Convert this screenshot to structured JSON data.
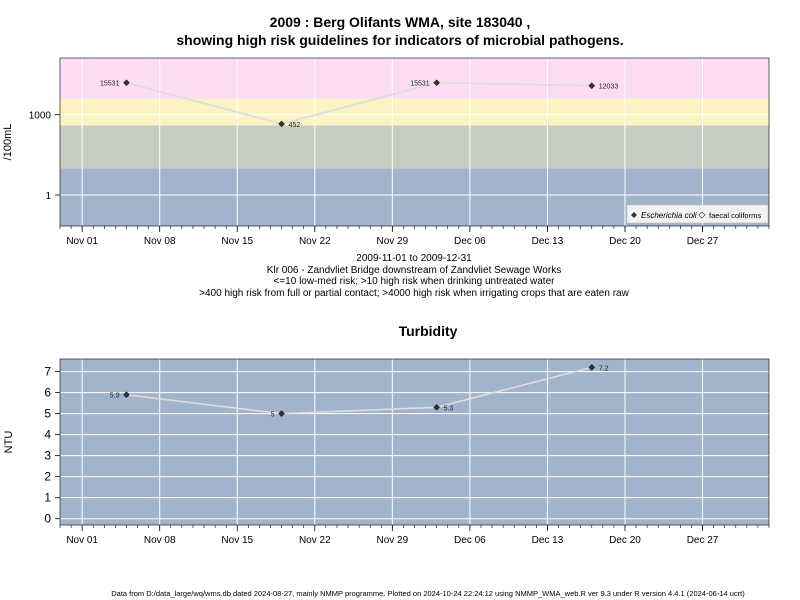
{
  "top": {
    "title_line1": "2009 : Berg Olifants WMA, site 183040 ,",
    "title_line2": "showing high risk guidelines for indicators of microbial pathogens.",
    "ylabel": "/100mL",
    "caption": [
      "2009-11-01 to 2009-12-31",
      "Klr 006 - Zandvliet Bridge downstream of Zandvliet Sewage Works",
      "<=10 low-med risk; >10 high risk when drinking untreated water",
      ">400 high risk from full or partial contact; >4000 high risk when irrigating crops that are eaten raw"
    ],
    "legend": {
      "ecoli": "Escherichia coli",
      "fc": "faecal coliforms"
    }
  },
  "bottom": {
    "title": "Turbidity",
    "ylabel": "NTU"
  },
  "footer": "Data from D:/data_large/wq/wms.db dated 2024-08-27, mainly NMMP programme. Plotted on 2024-10-24 22:24:12 using NMMP_WMA_web.R ver 9.3 under R version 4.4.1 (2024-06-14 ucrt)",
  "chart_data": [
    {
      "type": "line",
      "title": "2009 : Berg Olifants WMA, site 183040 , showing high risk guidelines for indicators of microbial pathogens.",
      "ylabel": "/100mL",
      "y_scale": "log",
      "y_ticks": [
        1,
        1000
      ],
      "ylim": [
        0.07,
        130000
      ],
      "xlim": [
        "2009-10-30",
        "2010-01-02"
      ],
      "x_tick_labels": [
        "Nov 01",
        "Nov 08",
        "Nov 15",
        "Nov 22",
        "Nov 29",
        "Dec 06",
        "Dec 13",
        "Dec 20",
        "Dec 27"
      ],
      "x_ticks": [
        "2009-11-01",
        "2009-11-08",
        "2009-11-15",
        "2009-11-22",
        "2009-11-29",
        "2009-12-06",
        "2009-12-13",
        "2009-12-20",
        "2009-12-27"
      ],
      "bands": [
        {
          "from": 0.07,
          "to": 10,
          "color": "#a2b4cc"
        },
        {
          "from": 10,
          "to": 400,
          "color": "#c5cdc2"
        },
        {
          "from": 400,
          "to": 4000,
          "color": "#fbf3c4"
        },
        {
          "from": 4000,
          "to": 130000,
          "color": "#fbdcf4"
        }
      ],
      "series": [
        {
          "name": "Escherichia coli",
          "marker": "filled-diamond",
          "x": [
            "2009-11-05",
            "2009-11-19",
            "2009-12-03",
            "2009-12-17"
          ],
          "y": [
            15531,
            452,
            15531,
            12033
          ],
          "labels": [
            "15531",
            "452",
            "15531",
            "12033"
          ]
        }
      ],
      "legend": [
        "Escherichia coli",
        "faecal coliforms"
      ],
      "legend_position": "bottom-right",
      "grid": true
    },
    {
      "type": "line",
      "title": "Turbidity",
      "ylabel": "NTU",
      "ylim": [
        -0.3,
        7.6
      ],
      "y_ticks": [
        0,
        1,
        2,
        3,
        4,
        5,
        6,
        7
      ],
      "xlim": [
        "2009-10-30",
        "2010-01-02"
      ],
      "x_tick_labels": [
        "Nov 01",
        "Nov 08",
        "Nov 15",
        "Nov 22",
        "Nov 29",
        "Dec 06",
        "Dec 13",
        "Dec 20",
        "Dec 27"
      ],
      "x_ticks": [
        "2009-11-01",
        "2009-11-08",
        "2009-11-15",
        "2009-11-22",
        "2009-11-29",
        "2009-12-06",
        "2009-12-13",
        "2009-12-20",
        "2009-12-27"
      ],
      "series": [
        {
          "marker": "filled-diamond",
          "x": [
            "2009-11-05",
            "2009-11-19",
            "2009-12-03",
            "2009-12-17"
          ],
          "y": [
            5.9,
            5.0,
            5.3,
            7.2
          ],
          "labels": [
            "5.9",
            "5",
            "5.3",
            "7.2"
          ]
        }
      ],
      "grid": true
    }
  ]
}
